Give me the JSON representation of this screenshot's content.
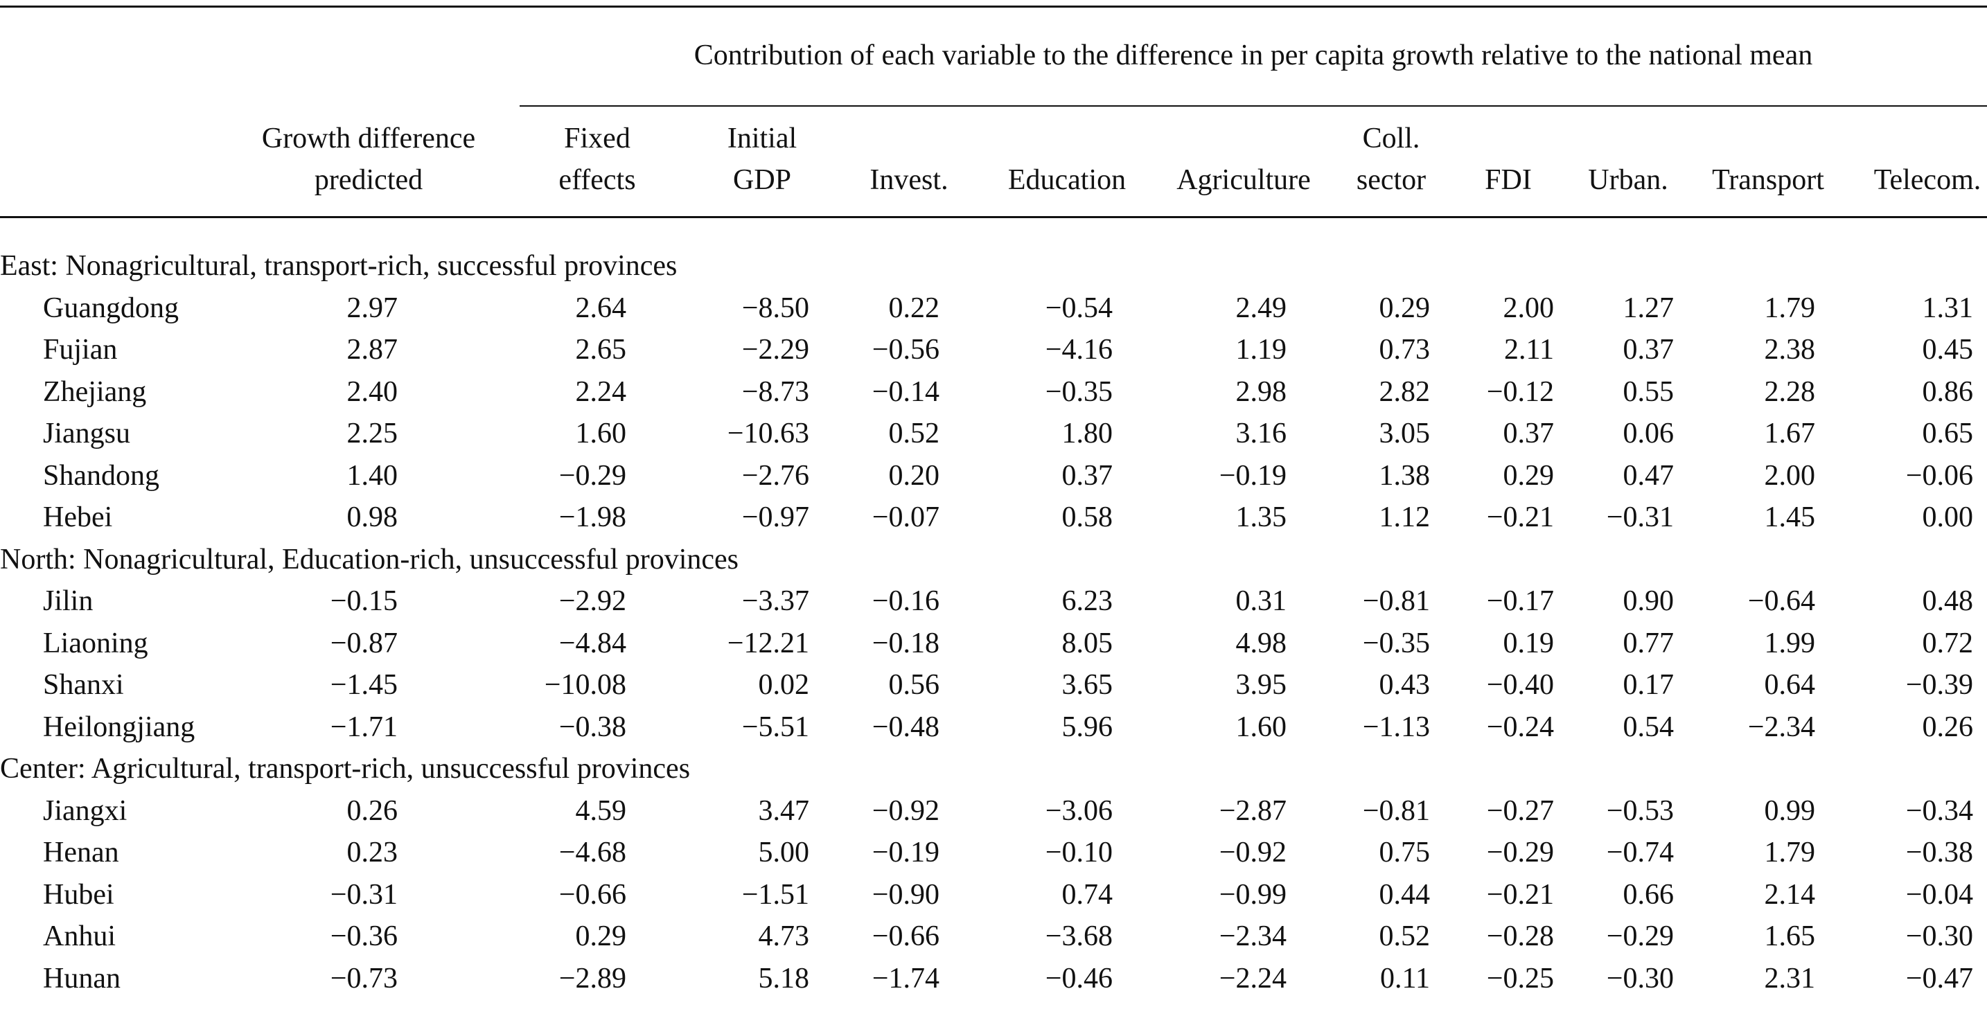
{
  "table": {
    "spanner": "Contribution of each variable to the difference in per capita growth relative to the national mean",
    "columns": [
      {
        "l1": "Growth difference",
        "l2": "predicted"
      },
      {
        "l1": "Fixed",
        "l2": "effects"
      },
      {
        "l1": "Initial",
        "l2": "GDP"
      },
      {
        "l1": "",
        "l2": "Invest."
      },
      {
        "l1": "",
        "l2": "Education"
      },
      {
        "l1": "",
        "l2": "Agriculture"
      },
      {
        "l1": "Coll.",
        "l2": "sector"
      },
      {
        "l1": "",
        "l2": "FDI"
      },
      {
        "l1": "",
        "l2": "Urban."
      },
      {
        "l1": "",
        "l2": "Transport"
      },
      {
        "l1": "",
        "l2": "Telecom."
      }
    ],
    "groups": [
      {
        "title": "East: Nonagricultural, transport-rich, successful provinces",
        "rows": [
          {
            "name": "Guangdong",
            "values": [
              "2.97",
              "2.64",
              "−8.50",
              "0.22",
              "−0.54",
              "2.49",
              "0.29",
              "2.00",
              "1.27",
              "1.79",
              "1.31"
            ]
          },
          {
            "name": "Fujian",
            "values": [
              "2.87",
              "2.65",
              "−2.29",
              "−0.56",
              "−4.16",
              "1.19",
              "0.73",
              "2.11",
              "0.37",
              "2.38",
              "0.45"
            ]
          },
          {
            "name": "Zhejiang",
            "values": [
              "2.40",
              "2.24",
              "−8.73",
              "−0.14",
              "−0.35",
              "2.98",
              "2.82",
              "−0.12",
              "0.55",
              "2.28",
              "0.86"
            ]
          },
          {
            "name": "Jiangsu",
            "values": [
              "2.25",
              "1.60",
              "−10.63",
              "0.52",
              "1.80",
              "3.16",
              "3.05",
              "0.37",
              "0.06",
              "1.67",
              "0.65"
            ]
          },
          {
            "name": "Shandong",
            "values": [
              "1.40",
              "−0.29",
              "−2.76",
              "0.20",
              "0.37",
              "−0.19",
              "1.38",
              "0.29",
              "0.47",
              "2.00",
              "−0.06"
            ]
          },
          {
            "name": "Hebei",
            "values": [
              "0.98",
              "−1.98",
              "−0.97",
              "−0.07",
              "0.58",
              "1.35",
              "1.12",
              "−0.21",
              "−0.31",
              "1.45",
              "0.00"
            ]
          }
        ]
      },
      {
        "title": "North: Nonagricultural, Education-rich, unsuccessful provinces",
        "rows": [
          {
            "name": "Jilin",
            "values": [
              "−0.15",
              "−2.92",
              "−3.37",
              "−0.16",
              "6.23",
              "0.31",
              "−0.81",
              "−0.17",
              "0.90",
              "−0.64",
              "0.48"
            ]
          },
          {
            "name": "Liaoning",
            "values": [
              "−0.87",
              "−4.84",
              "−12.21",
              "−0.18",
              "8.05",
              "4.98",
              "−0.35",
              "0.19",
              "0.77",
              "1.99",
              "0.72"
            ]
          },
          {
            "name": "Shanxi",
            "values": [
              "−1.45",
              "−10.08",
              "0.02",
              "0.56",
              "3.65",
              "3.95",
              "0.43",
              "−0.40",
              "0.17",
              "0.64",
              "−0.39"
            ]
          },
          {
            "name": "Heilongjiang",
            "values": [
              "−1.71",
              "−0.38",
              "−5.51",
              "−0.48",
              "5.96",
              "1.60",
              "−1.13",
              "−0.24",
              "0.54",
              "−2.34",
              "0.26"
            ]
          }
        ]
      },
      {
        "title": "Center: Agricultural, transport-rich, unsuccessful provinces",
        "rows": [
          {
            "name": "Jiangxi",
            "values": [
              "0.26",
              "4.59",
              "3.47",
              "−0.92",
              "−3.06",
              "−2.87",
              "−0.81",
              "−0.27",
              "−0.53",
              "0.99",
              "−0.34"
            ]
          },
          {
            "name": "Henan",
            "values": [
              "0.23",
              "−4.68",
              "5.00",
              "−0.19",
              "−0.10",
              "−0.92",
              "0.75",
              "−0.29",
              "−0.74",
              "1.79",
              "−0.38"
            ]
          },
          {
            "name": "Hubei",
            "values": [
              "−0.31",
              "−0.66",
              "−1.51",
              "−0.90",
              "0.74",
              "−0.99",
              "0.44",
              "−0.21",
              "0.66",
              "2.14",
              "−0.04"
            ]
          },
          {
            "name": "Anhui",
            "values": [
              "−0.36",
              "0.29",
              "4.73",
              "−0.66",
              "−3.68",
              "−2.34",
              "0.52",
              "−0.28",
              "−0.29",
              "1.65",
              "−0.30"
            ]
          },
          {
            "name": "Hunan",
            "values": [
              "−0.73",
              "−2.89",
              "5.18",
              "−1.74",
              "−0.46",
              "−2.24",
              "0.11",
              "−0.25",
              "−0.30",
              "2.31",
              "−0.47"
            ]
          }
        ]
      }
    ]
  }
}
